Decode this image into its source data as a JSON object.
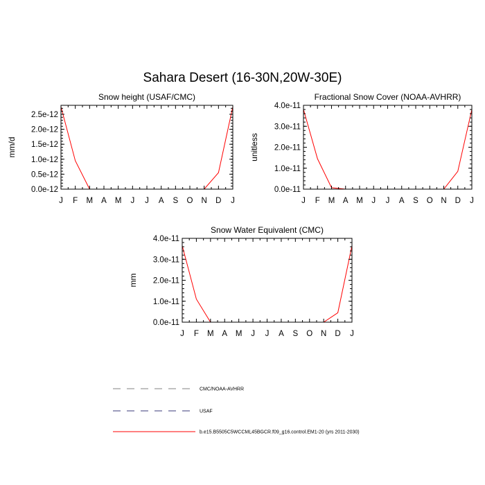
{
  "figure": {
    "title": "Sahara Desert (16-30N,20W-30E)",
    "months": [
      "J",
      "F",
      "M",
      "A",
      "M",
      "J",
      "J",
      "A",
      "S",
      "O",
      "N",
      "D",
      "J"
    ]
  },
  "chart_data": [
    {
      "type": "line",
      "title": "Snow height (USAF/CMC)",
      "xlabel": "",
      "ylabel": "mm/d",
      "categories": [
        "J",
        "F",
        "M",
        "A",
        "M",
        "J",
        "J",
        "A",
        "S",
        "O",
        "N",
        "D",
        "J"
      ],
      "ylim": [
        0,
        2.8e-12
      ],
      "yticks": [
        0,
        5e-13,
        1e-12,
        1.5e-12,
        2e-12,
        2.5e-12
      ],
      "ytick_labels": [
        "0.0e-12",
        "0.5e-12",
        "1.0e-12",
        "1.5e-12",
        "2.0e-12",
        "2.5e-12"
      ],
      "series": [
        {
          "key": "model",
          "values": [
            2.75e-12,
            9.5e-13,
            0,
            0,
            0,
            0,
            0,
            0,
            0,
            0,
            0,
            5.5e-13,
            2.75e-12
          ]
        },
        {
          "key": "obs1",
          "values": [
            0,
            0,
            0,
            0,
            0,
            0,
            0,
            0,
            0,
            0,
            0,
            0,
            0
          ]
        },
        {
          "key": "obs2",
          "values": [
            0,
            0,
            0,
            0,
            0,
            0,
            0,
            0,
            0,
            0,
            0,
            0,
            0
          ]
        }
      ]
    },
    {
      "type": "line",
      "title": "Fractional Snow Cover (NOAA-AVHRR)",
      "xlabel": "",
      "ylabel": "unitless",
      "categories": [
        "J",
        "F",
        "M",
        "A",
        "M",
        "J",
        "J",
        "A",
        "S",
        "O",
        "N",
        "D",
        "J"
      ],
      "ylim": [
        0,
        4e-11
      ],
      "yticks": [
        0,
        1e-11,
        2e-11,
        3e-11,
        4e-11
      ],
      "ytick_labels": [
        "0.0e-11",
        "1.0e-11",
        "2.0e-11",
        "3.0e-11",
        "4.0e-11"
      ],
      "series": [
        {
          "key": "model",
          "values": [
            3.8e-11,
            1.45e-11,
            7e-13,
            0,
            0,
            0,
            0,
            0,
            0,
            0,
            0,
            8.5e-12,
            3.8e-11
          ]
        },
        {
          "key": "obs1",
          "values": [
            0,
            0,
            0,
            0,
            0,
            0,
            0,
            0,
            0,
            0,
            0,
            0,
            0
          ]
        },
        {
          "key": "obs2",
          "values": [
            0,
            0,
            0,
            0,
            0,
            0,
            0,
            0,
            0,
            0,
            0,
            0,
            0
          ]
        }
      ]
    },
    {
      "type": "line",
      "title": "Snow Water Equivalent (CMC)",
      "xlabel": "",
      "ylabel": "mm",
      "categories": [
        "J",
        "F",
        "M",
        "A",
        "M",
        "J",
        "J",
        "A",
        "S",
        "O",
        "N",
        "D",
        "J"
      ],
      "ylim": [
        0,
        4e-11
      ],
      "yticks": [
        0,
        1e-11,
        2e-11,
        3e-11,
        4e-11
      ],
      "ytick_labels": [
        "0.0e-11",
        "1.0e-11",
        "2.0e-11",
        "3.0e-11",
        "4.0e-11"
      ],
      "series": [
        {
          "key": "model",
          "values": [
            3.65e-11,
            1.1e-11,
            0,
            0,
            0,
            0,
            0,
            0,
            0,
            0,
            0,
            4.5e-12,
            3.65e-11
          ]
        },
        {
          "key": "obs1",
          "values": [
            0,
            0,
            0,
            0,
            0,
            0,
            0,
            0,
            0,
            0,
            0,
            0,
            0
          ]
        },
        {
          "key": "obs2",
          "values": [
            0,
            0,
            0,
            0,
            0,
            0,
            0,
            0,
            0,
            0,
            0,
            0,
            0
          ]
        }
      ]
    }
  ],
  "legend": {
    "items": [
      {
        "key": "obs1",
        "label": "CMC/NOAA-AVHRR",
        "color": "#808080",
        "dash": "dashed"
      },
      {
        "key": "obs2",
        "label": "USAF",
        "color": "#3a3a7a",
        "dash": "dashed"
      },
      {
        "key": "model",
        "label": "b.e15.B5505C5WCCML45BGCR.f09_g16.control.EM1-20 (yrs 2011-2030)",
        "color": "#ff0000",
        "dash": "solid"
      }
    ]
  }
}
